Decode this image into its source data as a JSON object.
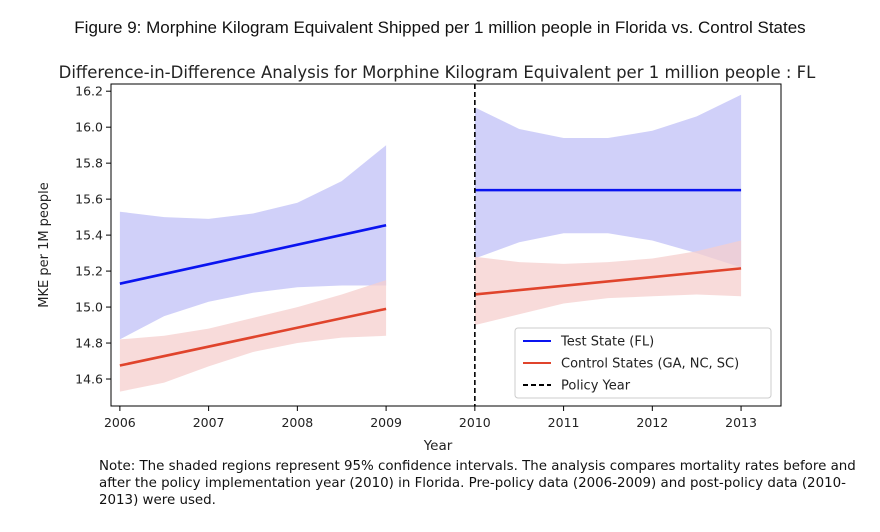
{
  "figure_caption": "Figure 9:  Morphine Kilogram Equivalent Shipped per 1 million people in Florida vs. Control States",
  "note": "Note: The shaded regions represent 95% confidence intervals. The analysis compares mortality rates before and after the policy implementation year (2010) in Florida. Pre-policy data (2006-2009) and post-policy data (2010-2013) were used.",
  "colors": {
    "test": "#0a14f0",
    "test_band": "#c8c8f8",
    "control": "#e0442c",
    "control_band": "#f6cfcd",
    "policy_line": "#000000"
  },
  "chart_data": {
    "type": "line",
    "title": "Difference-in-Difference Analysis for Morphine Kilogram Equivalent per 1 million people : FL",
    "xlabel": "Year",
    "ylabel": "MKE per 1M people",
    "xlim": [
      2005.9,
      2013.45
    ],
    "ylim": [
      14.45,
      16.24
    ],
    "x_ticks": [
      "2006",
      "2007",
      "2008",
      "2009",
      "2010",
      "2011",
      "2012",
      "2013"
    ],
    "y_ticks": [
      "14.6",
      "14.8",
      "15.0",
      "15.2",
      "15.4",
      "15.6",
      "15.8",
      "16.0",
      "16.2"
    ],
    "grid": false,
    "legend_position": "lower-right",
    "policy_year": 2010,
    "series": [
      {
        "name": "Test State (FL)",
        "color_key": "test",
        "segments": [
          {
            "x": [
              2006,
              2009
            ],
            "y": [
              15.13,
              15.455
            ],
            "ci_x": [
              2006,
              2006.5,
              2007,
              2007.5,
              2008,
              2008.5,
              2009
            ],
            "ci_upper": [
              15.53,
              15.5,
              15.49,
              15.52,
              15.58,
              15.7,
              15.9
            ],
            "ci_lower": [
              14.82,
              14.95,
              15.03,
              15.08,
              15.11,
              15.12,
              15.12
            ]
          },
          {
            "x": [
              2010,
              2013
            ],
            "y": [
              15.65,
              15.65
            ],
            "ci_x": [
              2010,
              2010.5,
              2011,
              2011.5,
              2012,
              2012.5,
              2013
            ],
            "ci_upper": [
              16.11,
              15.99,
              15.94,
              15.94,
              15.98,
              16.06,
              16.18
            ],
            "ci_lower": [
              15.27,
              15.36,
              15.41,
              15.41,
              15.37,
              15.3,
              15.22
            ]
          }
        ]
      },
      {
        "name": "Control States (GA, NC, SC)",
        "color_key": "control",
        "segments": [
          {
            "x": [
              2006,
              2009
            ],
            "y": [
              14.675,
              14.99
            ],
            "ci_x": [
              2006,
              2006.5,
              2007,
              2007.5,
              2008,
              2008.5,
              2009
            ],
            "ci_upper": [
              14.82,
              14.84,
              14.88,
              14.94,
              15.0,
              15.07,
              15.15
            ],
            "ci_lower": [
              14.53,
              14.58,
              14.67,
              14.75,
              14.8,
              14.83,
              14.84
            ]
          },
          {
            "x": [
              2010,
              2013
            ],
            "y": [
              15.07,
              15.215
            ],
            "ci_x": [
              2010,
              2010.5,
              2011,
              2011.5,
              2012,
              2012.5,
              2013
            ],
            "ci_upper": [
              15.28,
              15.25,
              15.24,
              15.25,
              15.27,
              15.31,
              15.37
            ],
            "ci_lower": [
              14.9,
              14.96,
              15.02,
              15.05,
              15.06,
              15.07,
              15.06
            ]
          }
        ]
      }
    ],
    "legend": [
      {
        "label": "Test State (FL)",
        "style": "solid",
        "color_key": "test"
      },
      {
        "label": "Control States (GA, NC, SC)",
        "style": "solid",
        "color_key": "control"
      },
      {
        "label": "Policy Year",
        "style": "dashed",
        "color_key": "policy_line"
      }
    ]
  }
}
